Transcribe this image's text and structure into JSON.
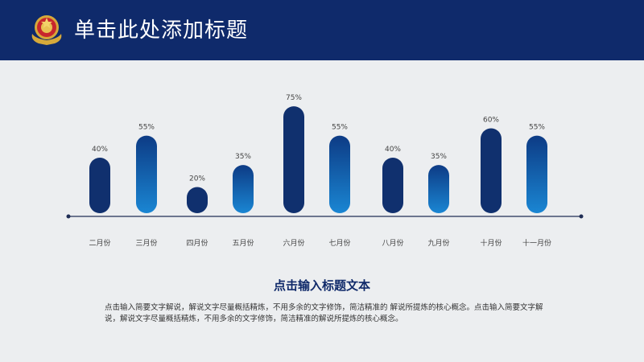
{
  "header": {
    "title": "单击此处添加标题",
    "logo_icon": "police-emblem-icon",
    "background": "#0f2a6b"
  },
  "chart_data": {
    "type": "bar",
    "categories": [
      "二月份",
      "三月份",
      "四月份",
      "五月份",
      "六月份",
      "七月份",
      "八月份",
      "九月份",
      "十月份",
      "十一月份"
    ],
    "values": [
      40,
      55,
      20,
      35,
      75,
      55,
      40,
      35,
      60,
      55
    ],
    "value_labels": [
      "40%",
      "55%",
      "20%",
      "35%",
      "75%",
      "55%",
      "40%",
      "35%",
      "60%",
      "55%"
    ],
    "unit": "%",
    "ylim": [
      0,
      80
    ],
    "grid": false,
    "legend": "none",
    "colors": {
      "dark": "#10306e",
      "light_top": "#0d3b85",
      "light_bottom": "#1a86d3",
      "axis": "#1f2d55"
    }
  },
  "summary": {
    "heading": "点击输入标题文本",
    "body": "点击输入简要文字解说，解说文字尽量概括精炼，不用多余的文字修饰，简洁精准的 解说所提炼的核心概念。点击输入简要文字解说，解说文字尽量概括精炼，不用多余的文字修饰，简洁精准的解说所提炼的核心概念。"
  }
}
